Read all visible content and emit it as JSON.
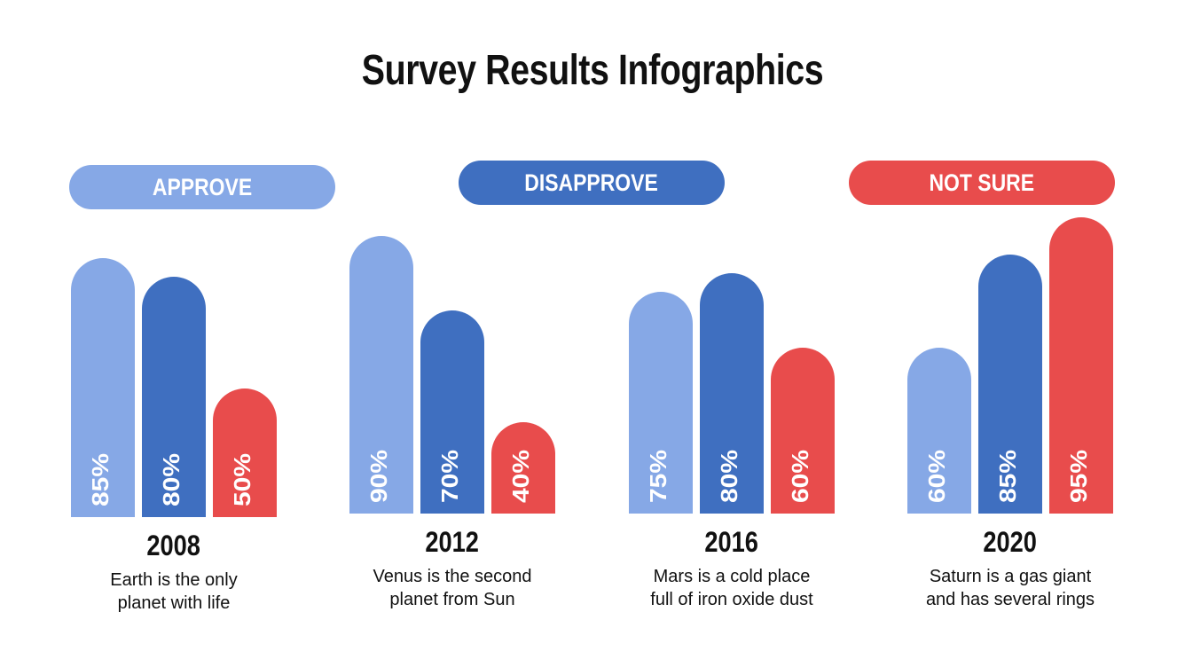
{
  "title": "Survey Results Infographics",
  "colors": {
    "approve": "#86a8e6",
    "disapprove": "#3f6fc0",
    "not_sure": "#e84c4c"
  },
  "chart_data": {
    "type": "bar",
    "title": "Survey Results Infographics",
    "categories": [
      "2008",
      "2012",
      "2016",
      "2020"
    ],
    "series": [
      {
        "name": "APPROVE",
        "values": [
          85,
          90,
          75,
          60
        ]
      },
      {
        "name": "DISAPPROVE",
        "values": [
          80,
          70,
          80,
          85
        ]
      },
      {
        "name": "NOT SURE",
        "values": [
          50,
          40,
          60,
          95
        ]
      }
    ],
    "value_suffix": "%",
    "descriptions": [
      [
        "Earth is the only",
        "planet with life"
      ],
      [
        "Venus is the second",
        "planet from Sun"
      ],
      [
        "Mars is a cold place",
        "full of iron oxide dust"
      ],
      [
        "Saturn is a gas giant",
        "and has several rings"
      ]
    ],
    "legend": "top"
  }
}
